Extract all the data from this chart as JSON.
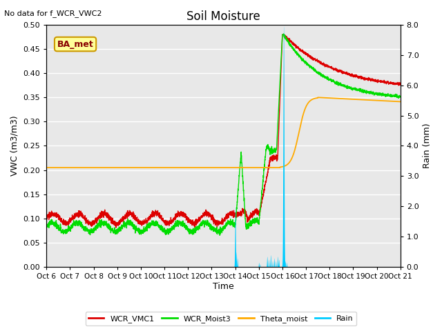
{
  "title": "Soil Moisture",
  "top_left_text": "No data for f_WCR_VWC2",
  "annotation_box": "BA_met",
  "xlabel": "Time",
  "ylabel_left": "VWC (m3/m3)",
  "ylabel_right": "Rain (mm)",
  "ylim_left": [
    0.0,
    0.5
  ],
  "ylim_right": [
    0.0,
    8.0
  ],
  "yticks_left": [
    0.0,
    0.05,
    0.1,
    0.15,
    0.2,
    0.25,
    0.3,
    0.35,
    0.4,
    0.45,
    0.5
  ],
  "yticks_right": [
    0.0,
    1.0,
    2.0,
    3.0,
    4.0,
    5.0,
    6.0,
    7.0,
    8.0
  ],
  "xtick_labels": [
    "Oct 6",
    "Oct 7",
    "Oct 8",
    "Oct 9",
    "Oct 10",
    "Oct 11",
    "Oct 12",
    "Oct 13",
    "Oct 14",
    "Oct 15",
    "Oct 16",
    "Oct 17",
    "Oct 18",
    "Oct 19",
    "Oct 20",
    "Oct 21"
  ],
  "background_color": "#e8e8e8",
  "colors": {
    "WCR_VMC1": "#dd0000",
    "WCR_Moist3": "#00dd00",
    "Theta_moist": "#ffaa00",
    "Rain": "#00ccff"
  }
}
